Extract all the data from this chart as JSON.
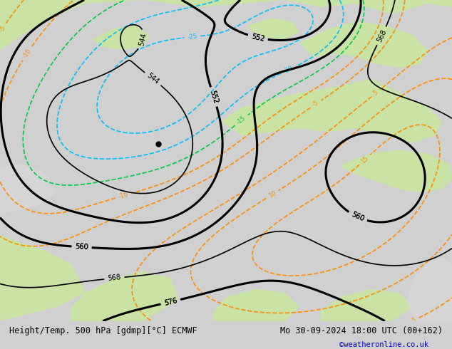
{
  "title_left": "Height/Temp. 500 hPa [gdmp][°C] ECMWF",
  "title_right": "Mo 30-09-2024 18:00 UTC (00+162)",
  "watermark": "©weatheronline.co.uk",
  "bg_color": "#d0d0d0",
  "land_color_green": "#c8e6a0",
  "land_color_light": "#e8e8e8",
  "z500_color": "#000000",
  "temp_warm_color": "#ff8c00",
  "temp_cold_color": "#00bfff",
  "temp_mid_color": "#00cc00",
  "bottom_bar_color": "#e8e8e8",
  "bottom_text_color": "#000000",
  "watermark_color": "#0000cc",
  "green_temp_color": "#00cc44",
  "green2_temp_color": "#44aa00"
}
